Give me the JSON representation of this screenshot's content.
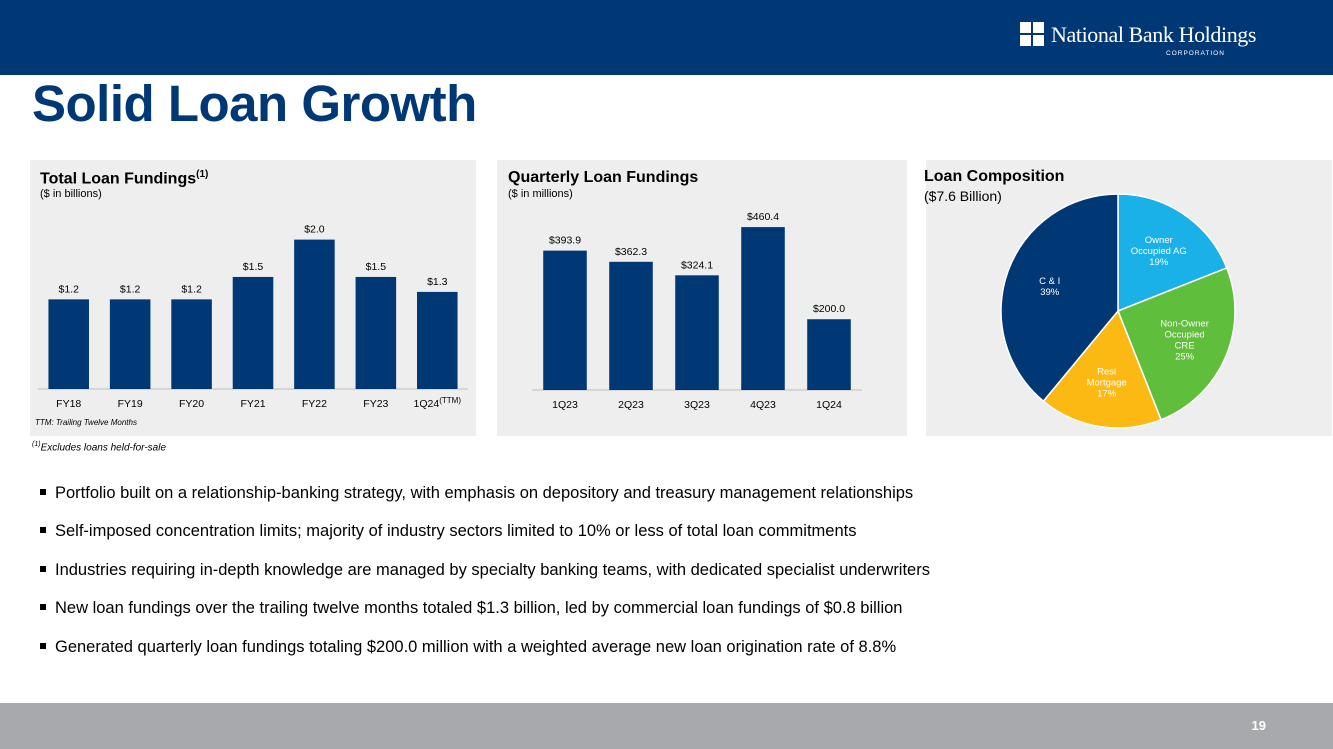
{
  "header": {
    "logo_name": "National Bank Holdings",
    "logo_sub": "CORPORATION",
    "brand_color": "#003876"
  },
  "title": "Solid Loan Growth",
  "chart_data": [
    {
      "type": "bar",
      "title": "Total Loan Fundings",
      "title_sup": "(1)",
      "subtitle": "($ in billions)",
      "categories": [
        "FY18",
        "FY19",
        "FY20",
        "FY21",
        "FY22",
        "FY23",
        "1Q24"
      ],
      "last_category_sup": "(TTM)",
      "values": [
        1.2,
        1.2,
        1.2,
        1.5,
        2.0,
        1.5,
        1.3
      ],
      "value_labels": [
        "$1.2",
        "$1.2",
        "$1.2",
        "$1.5",
        "$2.0",
        "$1.5",
        "$1.3"
      ],
      "ylim": [
        0,
        2.45
      ],
      "bar_color": "#003876",
      "note": "TTM: Trailing Twelve Months"
    },
    {
      "type": "bar",
      "title": "Quarterly Loan Fundings",
      "subtitle": "($ in millions)",
      "categories": [
        "1Q23",
        "2Q23",
        "3Q23",
        "4Q23",
        "1Q24"
      ],
      "values": [
        393.9,
        362.3,
        324.1,
        460.4,
        200.0
      ],
      "value_labels": [
        "$393.9",
        "$362.3",
        "$324.1",
        "$460.4",
        "$200.0"
      ],
      "ylim": [
        0,
        520
      ],
      "bar_color": "#003876"
    },
    {
      "type": "pie",
      "title": "Loan Composition",
      "subtitle": "($7.6 Billion)",
      "slices": [
        {
          "label": [
            "Owner",
            "Occupied AG",
            "19%"
          ],
          "value": 19,
          "color": "#19b1e8"
        },
        {
          "label": [
            "Non-Owner",
            "Occupied",
            "CRE",
            "25%"
          ],
          "value": 25,
          "color": "#5fbe3c"
        },
        {
          "label": [
            "Resi",
            "Mortgage",
            "17%"
          ],
          "value": 17,
          "color": "#fdb913"
        },
        {
          "label": [
            "C & I",
            "39%"
          ],
          "value": 39,
          "color": "#003876"
        }
      ]
    }
  ],
  "footnote": {
    "sup": "(1)",
    "text": "Excludes loans held-for-sale"
  },
  "bullets": [
    "Portfolio built on a relationship-banking strategy, with emphasis on depository and treasury management relationships",
    "Self-imposed concentration limits; majority of industry sectors limited to 10% or less of total loan commitments",
    "Industries requiring in-depth knowledge are managed by specialty banking teams, with dedicated specialist underwriters",
    "New loan fundings over the trailing twelve months totaled $1.3 billion, led by commercial loan fundings of $0.8 billion",
    "Generated quarterly loan fundings totaling $200.0 million with a weighted average new loan origination rate of 8.8%"
  ],
  "page_number": "19"
}
